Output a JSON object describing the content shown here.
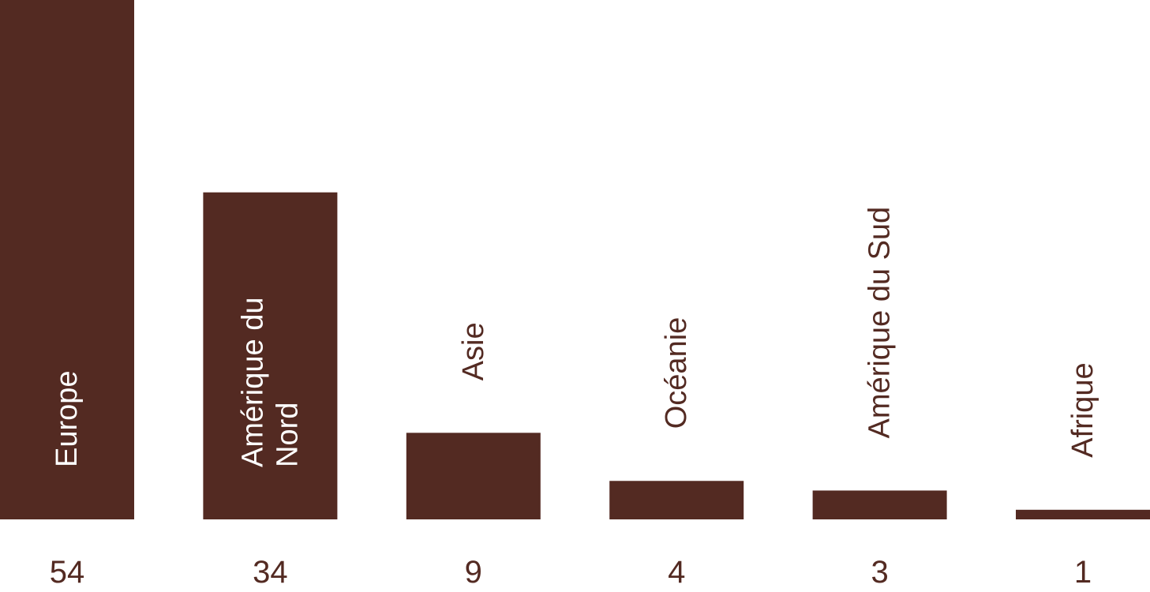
{
  "chart_data": {
    "type": "bar",
    "categories": [
      "Europe",
      "Amérique du Nord",
      "Asie",
      "Océanie",
      "Amérique du Sud",
      "Afrique"
    ],
    "category_label_lines": [
      [
        "Europe"
      ],
      [
        "Amérique du",
        "Nord"
      ],
      [
        "Asie"
      ],
      [
        "Océanie"
      ],
      [
        "Amérique du Sud"
      ],
      [
        "Afrique"
      ]
    ],
    "values": [
      54,
      34,
      9,
      4,
      3,
      1
    ],
    "value_labels": [
      "54",
      "34",
      "9",
      "4",
      "3",
      "1"
    ],
    "ylim": [
      0,
      54
    ],
    "grid": false,
    "legend": "none",
    "title": "",
    "xlabel": "",
    "ylabel": ""
  },
  "colors": {
    "bar": "#532a22",
    "label_on_bar": "#ffffff",
    "label_off_bar": "#532a22",
    "value_text": "#532a22",
    "background": "#ffffff"
  }
}
